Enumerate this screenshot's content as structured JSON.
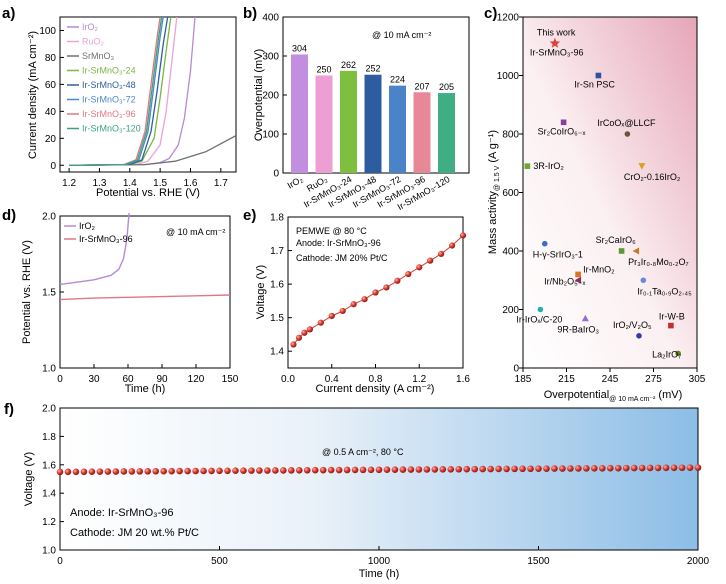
{
  "panels": {
    "a": "a)",
    "b": "b)",
    "c": "c)",
    "d": "d)",
    "e": "e)",
    "f": "f)"
  },
  "chart_data": [
    {
      "id": "a",
      "type": "line",
      "xlabel": "Potential vs. RHE (V)",
      "ylabel": "Current density (mA cm⁻²)",
      "xlim": [
        1.17,
        1.75
      ],
      "ylim": [
        -5,
        110
      ],
      "xticks": [
        "1.2",
        "1.3",
        "1.4",
        "1.5",
        "1.6",
        "1.7"
      ],
      "yticks": [
        "0",
        "20",
        "40",
        "60",
        "80",
        "100"
      ],
      "legend_position": "top-left",
      "series": [
        {
          "name": "IrO₂",
          "color": "#b58ad6",
          "points": [
            [
              1.2,
              0
            ],
            [
              1.45,
              0.5
            ],
            [
              1.5,
              2
            ],
            [
              1.53,
              5
            ],
            [
              1.56,
              15
            ],
            [
              1.58,
              35
            ],
            [
              1.6,
              70
            ],
            [
              1.615,
              110
            ]
          ]
        },
        {
          "name": "RuO₂",
          "color": "#e9a3d6",
          "points": [
            [
              1.2,
              0
            ],
            [
              1.42,
              0.5
            ],
            [
              1.46,
              3
            ],
            [
              1.5,
              15
            ],
            [
              1.52,
              40
            ],
            [
              1.54,
              80
            ],
            [
              1.555,
              110
            ]
          ]
        },
        {
          "name": "SrMnO₃",
          "color": "#707070",
          "points": [
            [
              1.2,
              0
            ],
            [
              1.45,
              0.5
            ],
            [
              1.55,
              3
            ],
            [
              1.65,
              10
            ],
            [
              1.75,
              22
            ]
          ]
        },
        {
          "name": "Ir-SrMnO₃-24",
          "color": "#7bb542",
          "points": [
            [
              1.2,
              0
            ],
            [
              1.4,
              0.5
            ],
            [
              1.44,
              3
            ],
            [
              1.48,
              20
            ],
            [
              1.5,
              50
            ],
            [
              1.52,
              85
            ],
            [
              1.535,
              110
            ]
          ]
        },
        {
          "name": "Ir-SrMnO₃-48",
          "color": "#2f5f9f",
          "points": [
            [
              1.2,
              0
            ],
            [
              1.4,
              0.5
            ],
            [
              1.44,
              4
            ],
            [
              1.47,
              25
            ],
            [
              1.49,
              55
            ],
            [
              1.51,
              90
            ],
            [
              1.525,
              110
            ]
          ]
        },
        {
          "name": "Ir-SrMnO₃-72",
          "color": "#4c88c7",
          "points": [
            [
              1.2,
              0
            ],
            [
              1.39,
              0.5
            ],
            [
              1.43,
              4
            ],
            [
              1.46,
              25
            ],
            [
              1.48,
              60
            ],
            [
              1.5,
              95
            ],
            [
              1.51,
              110
            ]
          ]
        },
        {
          "name": "Ir-SrMnO₃-96",
          "color": "#e07783",
          "points": [
            [
              1.2,
              0
            ],
            [
              1.38,
              0.5
            ],
            [
              1.42,
              4
            ],
            [
              1.45,
              25
            ],
            [
              1.47,
              60
            ],
            [
              1.49,
              95
            ],
            [
              1.5,
              110
            ]
          ]
        },
        {
          "name": "Ir-SrMnO₃-120",
          "color": "#3ba37a",
          "points": [
            [
              1.2,
              0
            ],
            [
              1.385,
              0.5
            ],
            [
              1.425,
              4
            ],
            [
              1.455,
              25
            ],
            [
              1.475,
              60
            ],
            [
              1.495,
              95
            ],
            [
              1.505,
              110
            ]
          ]
        }
      ]
    },
    {
      "id": "b",
      "type": "bar",
      "ylabel": "Overpotential (mV)",
      "annotation": "@ 10 mA cm⁻²",
      "ylim": [
        0,
        400
      ],
      "yticks": [
        "0",
        "100",
        "200",
        "300",
        "400"
      ],
      "categories": [
        "IrO₂",
        "RuO₂",
        "Ir-SrMnO₃-24",
        "Ir-SrMnO₃-48",
        "Ir-SrMnO₃-72",
        "Ir-SrMnO₃-96",
        "Ir-SrMnO₃-120"
      ],
      "values": [
        304,
        250,
        262,
        252,
        224,
        207,
        205
      ],
      "labels": [
        "304",
        "250",
        "262",
        "252",
        "224",
        "207",
        "205"
      ],
      "colors": [
        "#c28fe0",
        "#ed9ed3",
        "#7fbf3f",
        "#2d5da0",
        "#4a83c8",
        "#e78896",
        "#3fae83"
      ]
    },
    {
      "id": "c",
      "type": "scatter",
      "xlabel": "Overpotential",
      "xlabel_sub": "@ 10 mA cm⁻²",
      "xlabel_unit": " (mV)",
      "ylabel": "Mass activity",
      "ylabel_sub": "@ 1.5 V",
      "ylabel_unit": " (A g⁻¹)",
      "xlim": [
        185,
        305
      ],
      "ylim": [
        0,
        1200
      ],
      "xticks": [
        "185",
        "215",
        "245",
        "275",
        "305"
      ],
      "yticks": [
        "0",
        "200",
        "400",
        "600",
        "800",
        "1000",
        "1200"
      ],
      "points": [
        {
          "label": "This work Ir-SrMnO₃-96",
          "x": 207,
          "y": 1110,
          "marker": "star",
          "color": "#e0403a"
        },
        {
          "label": "Ir-Sn PSC",
          "x": 237,
          "y": 1000,
          "marker": "square",
          "color": "#2a54a0"
        },
        {
          "label": "Sr₂CoIrO₆₋ₓ",
          "x": 213,
          "y": 840,
          "marker": "square",
          "color": "#8a3fa0"
        },
        {
          "label": "IrCoOₓ@LLCF",
          "x": 257,
          "y": 800,
          "marker": "circle",
          "color": "#6a5540"
        },
        {
          "label": "3R-IrO₂",
          "x": 188,
          "y": 690,
          "marker": "square",
          "color": "#6aaa2a"
        },
        {
          "label": "CrO₂-0.16IrO₂",
          "x": 267,
          "y": 690,
          "marker": "triangle-down",
          "color": "#d9a020"
        },
        {
          "label": "Sr₂CaIrO₆",
          "x": 253,
          "y": 400,
          "marker": "square",
          "color": "#5a9a30"
        },
        {
          "label": "H-γ-SrIrO₃-1",
          "x": 200,
          "y": 425,
          "marker": "circle",
          "color": "#3a6fc9"
        },
        {
          "label": "Ir-MnO₂",
          "x": 223,
          "y": 320,
          "marker": "square",
          "color": "#e07020"
        },
        {
          "label": "Pr₃Ir₀.₈Mo₀.₂O₇",
          "x": 263,
          "y": 400,
          "marker": "triangle-left",
          "color": "#c08020"
        },
        {
          "label": "Ir/Nb₂O₅₋ₓ",
          "x": 223,
          "y": 300,
          "marker": "triangle-left",
          "color": "#8a2a60"
        },
        {
          "label": "Ir₀.₁Ta₀.₉O₂.₄₅",
          "x": 268,
          "y": 300,
          "marker": "circle",
          "color": "#6a8ad6"
        },
        {
          "label": "Ir-IrOₓ/C-20",
          "x": 197,
          "y": 200,
          "marker": "circle",
          "color": "#20b0b0"
        },
        {
          "label": "9R-BaIrO₃",
          "x": 228,
          "y": 170,
          "marker": "triangle-up",
          "color": "#9a6ad6"
        },
        {
          "label": "Ir-W-B",
          "x": 287,
          "y": 145,
          "marker": "square",
          "color": "#c03030"
        },
        {
          "label": "IrO₂/V₂O₅",
          "x": 265,
          "y": 110,
          "marker": "circle",
          "color": "#2f3f9f"
        },
        {
          "label": "La₂IrO₇",
          "x": 292,
          "y": 50,
          "marker": "circle",
          "color": "#5a8a2a"
        }
      ]
    },
    {
      "id": "d",
      "type": "line",
      "xlabel": "Time (h)",
      "ylabel": "Potential vs. RHE (V)",
      "annotation": "@ 10 mA cm⁻²",
      "xlim": [
        0,
        150
      ],
      "ylim": [
        1.0,
        2.0
      ],
      "xticks": [
        "0",
        "30",
        "60",
        "90",
        "120",
        "150"
      ],
      "yticks": [
        "1.0",
        "1.5",
        "2.0"
      ],
      "series": [
        {
          "name": "IrO₂",
          "color": "#b58ad6",
          "points": [
            [
              0,
              1.55
            ],
            [
              10,
              1.56
            ],
            [
              30,
              1.58
            ],
            [
              45,
              1.61
            ],
            [
              52,
              1.65
            ],
            [
              56,
              1.72
            ],
            [
              59,
              1.85
            ],
            [
              61,
              2.02
            ]
          ]
        },
        {
          "name": "Ir-SrMnO₃-96",
          "color": "#e07783",
          "points": [
            [
              0,
              1.45
            ],
            [
              30,
              1.46
            ],
            [
              60,
              1.465
            ],
            [
              90,
              1.47
            ],
            [
              120,
              1.475
            ],
            [
              150,
              1.48
            ]
          ]
        }
      ]
    },
    {
      "id": "e",
      "type": "scatter",
      "xlabel": "Current density (A cm⁻²)",
      "ylabel": "Voltage (V)",
      "notes": [
        "PEMWE @ 80 °C",
        "Anode: Ir-SrMnO₃-96",
        "Cathode: JM 20% Pt/C"
      ],
      "xlim": [
        0,
        1.6
      ],
      "ylim": [
        1.35,
        1.8
      ],
      "xticks": [
        "0.0",
        "0.4",
        "0.8",
        "1.2",
        "1.6"
      ],
      "yticks": [
        "1.4",
        "1.5",
        "1.6",
        "1.7",
        "1.8"
      ],
      "color": "#d83a30",
      "points": [
        [
          0.05,
          1.42
        ],
        [
          0.1,
          1.44
        ],
        [
          0.15,
          1.455
        ],
        [
          0.2,
          1.465
        ],
        [
          0.3,
          1.485
        ],
        [
          0.4,
          1.505
        ],
        [
          0.5,
          1.52
        ],
        [
          0.6,
          1.54
        ],
        [
          0.7,
          1.555
        ],
        [
          0.8,
          1.575
        ],
        [
          0.9,
          1.59
        ],
        [
          1.0,
          1.61
        ],
        [
          1.1,
          1.63
        ],
        [
          1.2,
          1.65
        ],
        [
          1.3,
          1.67
        ],
        [
          1.4,
          1.69
        ],
        [
          1.5,
          1.715
        ],
        [
          1.6,
          1.745
        ]
      ]
    },
    {
      "id": "f",
      "type": "scatter",
      "xlabel": "Time (h)",
      "ylabel": "Voltage (V)",
      "annotation": "@ 0.5 A cm⁻², 80 °C",
      "notes": [
        "Anode: Ir-SrMnO₃-96",
        "Cathode: JM 20 wt.% Pt/C"
      ],
      "xlim": [
        0,
        2000
      ],
      "ylim": [
        1.0,
        2.0
      ],
      "xticks": [
        "0",
        "500",
        "1000",
        "1500",
        "2000"
      ],
      "yticks": [
        "1.0",
        "1.2",
        "1.4",
        "1.6",
        "1.8",
        "2.0"
      ],
      "color": "#d83a30",
      "start_value": 1.55,
      "end_value": 1.58,
      "interval_h": 25
    }
  ]
}
